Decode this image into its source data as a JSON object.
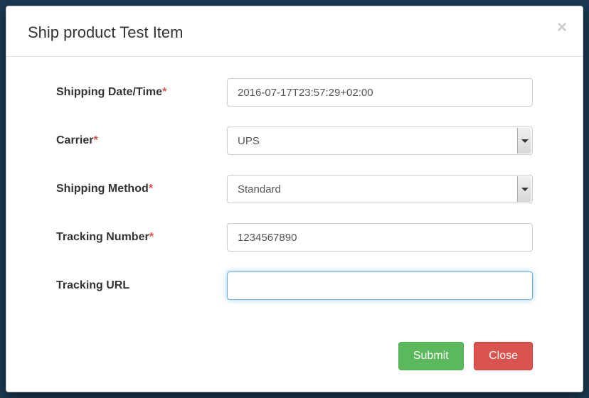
{
  "modal": {
    "title": "Ship product Test Item",
    "close_x": "×"
  },
  "form": {
    "fields": {
      "shipping_datetime": {
        "label": "Shipping Date/Time",
        "required": "*",
        "value": "2016-07-17T23:57:29+02:00"
      },
      "carrier": {
        "label": "Carrier",
        "required": "*",
        "value": "UPS"
      },
      "shipping_method": {
        "label": "Shipping Method",
        "required": "*",
        "value": "Standard"
      },
      "tracking_number": {
        "label": "Tracking Number",
        "required": "*",
        "value": "1234567890"
      },
      "tracking_url": {
        "label": "Tracking URL",
        "value": ""
      }
    }
  },
  "footer": {
    "submit_label": "Submit",
    "close_label": "Close"
  },
  "colors": {
    "background": "#1a3a52",
    "modal_bg": "#ffffff",
    "border": "#cccccc",
    "text": "#333333",
    "input_text": "#555555",
    "required": "#d9534f",
    "focus_border": "#66afe9",
    "submit_btn": "#5cb85c",
    "close_btn": "#d9534f"
  }
}
